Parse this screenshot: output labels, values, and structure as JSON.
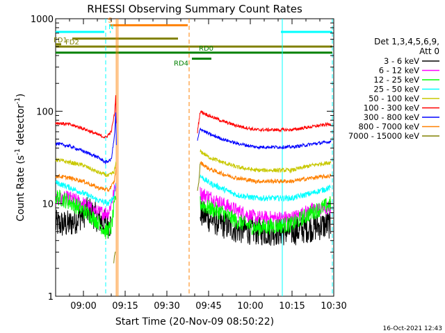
{
  "chart_data": {
    "type": "line",
    "title": "RHESSI Observing Summary Count Rates",
    "xlabel": "Start Time (20-Nov-09 08:50:22)",
    "ylabel_main": "Count Rate (s",
    "ylabel_sup": "-1",
    "ylabel_mid": " detector",
    "ylabel_end": ")",
    "ylog": true,
    "xlim_min": [
      0,
      100
    ],
    "ylim": [
      1,
      1000
    ],
    "x_ticks": [
      {
        "min": 10,
        "label": "09:00"
      },
      {
        "min": 25,
        "label": "09:15"
      },
      {
        "min": 40,
        "label": "09:30"
      },
      {
        "min": 55,
        "label": "09:45"
      },
      {
        "min": 70,
        "label": "10:00"
      },
      {
        "min": 85,
        "label": "10:15"
      },
      {
        "min": 100,
        "label": "10:30"
      }
    ],
    "y_ticks": [
      {
        "value": 1,
        "label": "1"
      },
      {
        "value": 10,
        "label": "10"
      },
      {
        "value": 100,
        "label": "100"
      },
      {
        "value": 1000,
        "label": "1000"
      }
    ],
    "legend": {
      "placement": "right",
      "header": [
        "Det 1,3,4,5,6,9,",
        "Att 0"
      ],
      "entries": [
        {
          "label": "3 - 6 keV",
          "color": "#000000"
        },
        {
          "label": "6 - 12 keV",
          "color": "#ff00ff"
        },
        {
          "label": "12 - 25 keV",
          "color": "#00ff00"
        },
        {
          "label": "25 - 50 keV",
          "color": "#00ffff"
        },
        {
          "label": "50 - 100 keV",
          "color": "#c8c800"
        },
        {
          "label": "100 - 300 keV",
          "color": "#ff0000"
        },
        {
          "label": "300 - 800 keV",
          "color": "#0000ff"
        },
        {
          "label": "800 - 7000 keV",
          "color": "#ff8000"
        },
        {
          "label": "7000 - 15000 keV",
          "color": "#808000"
        }
      ]
    },
    "flags": [
      {
        "label": "",
        "color": "#00ffff",
        "x0": -1,
        "x1": 17.5,
        "y": 720
      },
      {
        "label": "",
        "color": "#00ffff",
        "x0": 81,
        "x1": 99.5,
        "y": 720
      },
      {
        "label": "S",
        "color": "#ff8000",
        "x0": 19.5,
        "x1": 47.5,
        "y": 850
      },
      {
        "label": "N",
        "color": "#00ffff",
        "x0": 19.5,
        "x1": 19.8,
        "y": 720
      },
      {
        "label": "FD1",
        "color": "#808000",
        "x0": -1,
        "x1": 2,
        "y": 530
      },
      {
        "label": "",
        "color": "#808000",
        "x0": 6,
        "x1": 44,
        "y": 610
      },
      {
        "label": "FD2",
        "color": "#808000",
        "x0": -1,
        "x1": 99.5,
        "y": 500
      },
      {
        "label": "RD0",
        "color": "#008000",
        "x0": -1,
        "x1": 99.5,
        "y": 430
      },
      {
        "label": "RD4",
        "color": "#008000",
        "x0": 49,
        "x1": 56,
        "y": 370
      }
    ],
    "vlines": [
      {
        "x": 18,
        "color": "#00ffff",
        "dash": true
      },
      {
        "x": 21.8,
        "color": "#ff8000",
        "dash": false
      },
      {
        "x": 22.4,
        "color": "#ff8000",
        "dash": false
      },
      {
        "x": 48,
        "color": "#ff8000",
        "dash": true
      },
      {
        "x": 81.5,
        "color": "#00ffff",
        "dash": false
      },
      {
        "x": 99.5,
        "color": "#00ffff",
        "dash": true
      }
    ],
    "series": [
      {
        "name": "3 - 6 keV",
        "color": "#000000",
        "noise": 0.35,
        "seg1": [
          [
            0,
            6
          ],
          [
            5,
            6
          ],
          [
            8,
            7
          ],
          [
            12,
            8.5
          ],
          [
            15,
            7
          ],
          [
            18,
            6
          ],
          [
            20,
            6
          ]
        ],
        "seg2": [
          [
            52,
            8
          ],
          [
            55,
            7
          ],
          [
            60,
            6
          ],
          [
            65,
            5.3
          ],
          [
            75,
            5
          ],
          [
            85,
            5
          ],
          [
            92,
            5.5
          ],
          [
            99,
            6
          ]
        ]
      },
      {
        "name": "6 - 12 keV",
        "color": "#ff00ff",
        "noise": 0.18,
        "seg1": [
          [
            0,
            11
          ],
          [
            5,
            11.5
          ],
          [
            10,
            10
          ],
          [
            15,
            8
          ],
          [
            19,
            8
          ],
          [
            21,
            13
          ],
          [
            21.8,
            18
          ]
        ],
        "seg2": [
          [
            52,
            13
          ],
          [
            55,
            12
          ],
          [
            60,
            10
          ],
          [
            65,
            8.5
          ],
          [
            72,
            7
          ],
          [
            85,
            7
          ],
          [
            92,
            8.5
          ],
          [
            99,
            9
          ]
        ]
      },
      {
        "name": "12 - 25 keV",
        "color": "#00ff00",
        "noise": 0.2,
        "seg1": [
          [
            0,
            12
          ],
          [
            5,
            10.5
          ],
          [
            10,
            8.5
          ],
          [
            15,
            6.5
          ],
          [
            18,
            5
          ],
          [
            20,
            5.5
          ],
          [
            21.8,
            13
          ]
        ],
        "seg2": [
          [
            52,
            10
          ],
          [
            55,
            9
          ],
          [
            60,
            8
          ],
          [
            65,
            6.5
          ],
          [
            72,
            5.5
          ],
          [
            85,
            6
          ],
          [
            92,
            8
          ],
          [
            99,
            10
          ]
        ]
      },
      {
        "name": "25 - 50 keV",
        "color": "#00ffff",
        "noise": 0.07,
        "seg1": [
          [
            0,
            17
          ],
          [
            5,
            15
          ],
          [
            10,
            13
          ],
          [
            15,
            11
          ],
          [
            19,
            10
          ],
          [
            21,
            12
          ],
          [
            21.8,
            18
          ]
        ],
        "seg2": [
          [
            52,
            20
          ],
          [
            55,
            17
          ],
          [
            60,
            14.5
          ],
          [
            65,
            12.5
          ],
          [
            72,
            11.5
          ],
          [
            85,
            11.5
          ],
          [
            92,
            13
          ],
          [
            99,
            15
          ]
        ]
      },
      {
        "name": "50 - 100 keV",
        "color": "#c8c800",
        "noise": 0.05,
        "seg1": [
          [
            0,
            30
          ],
          [
            5,
            28
          ],
          [
            10,
            26
          ],
          [
            15,
            22
          ],
          [
            19,
            20
          ],
          [
            21,
            22
          ],
          [
            21.8,
            28
          ]
        ],
        "seg2": [
          [
            52,
            37
          ],
          [
            55,
            32
          ],
          [
            60,
            28
          ],
          [
            65,
            25
          ],
          [
            72,
            23
          ],
          [
            85,
            23
          ],
          [
            92,
            26
          ],
          [
            99,
            28
          ]
        ]
      },
      {
        "name": "100 - 300 keV",
        "color": "#ff0000",
        "noise": 0.04,
        "seg1": [
          [
            0,
            75
          ],
          [
            5,
            72
          ],
          [
            10,
            65
          ],
          [
            15,
            56
          ],
          [
            18,
            52
          ],
          [
            20,
            60
          ],
          [
            21.2,
            95
          ],
          [
            21.6,
            145
          ],
          [
            21.9,
            60
          ]
        ],
        "seg2": [
          [
            51,
            60
          ],
          [
            52,
            100
          ],
          [
            55,
            90
          ],
          [
            60,
            78
          ],
          [
            65,
            70
          ],
          [
            72,
            63
          ],
          [
            85,
            63
          ],
          [
            92,
            68
          ],
          [
            99,
            73
          ]
        ]
      },
      {
        "name": "300 - 800 keV",
        "color": "#0000ff",
        "noise": 0.04,
        "seg1": [
          [
            0,
            45
          ],
          [
            5,
            42
          ],
          [
            10,
            37
          ],
          [
            15,
            32
          ],
          [
            18,
            28
          ],
          [
            20,
            30
          ],
          [
            21.2,
            55
          ],
          [
            21.6,
            95
          ],
          [
            21.9,
            35
          ]
        ],
        "seg2": [
          [
            51,
            48
          ],
          [
            52,
            65
          ],
          [
            55,
            57
          ],
          [
            60,
            50
          ],
          [
            65,
            45
          ],
          [
            72,
            41
          ],
          [
            85,
            41
          ],
          [
            92,
            44
          ],
          [
            99,
            47
          ]
        ]
      },
      {
        "name": "800 - 7000 keV",
        "color": "#ff8000",
        "noise": 0.05,
        "seg1": [
          [
            0,
            20
          ],
          [
            5,
            19
          ],
          [
            10,
            17.5
          ],
          [
            15,
            15
          ],
          [
            19,
            14
          ],
          [
            21,
            17
          ],
          [
            21.8,
            25
          ]
        ],
        "seg2": [
          [
            52,
            28
          ],
          [
            55,
            24
          ],
          [
            60,
            21
          ],
          [
            65,
            19
          ],
          [
            72,
            17.5
          ],
          [
            85,
            17.5
          ],
          [
            92,
            19
          ],
          [
            99,
            20
          ]
        ]
      },
      {
        "name": "7000 - 15000 keV",
        "color": "#808000",
        "noise": 0.02,
        "seg1": [
          [
            20.9,
            2.3
          ],
          [
            21.2,
            2.8
          ],
          [
            21.5,
            3
          ]
        ],
        "seg2": [
          [
            51,
            14
          ],
          [
            51.5,
            17
          ],
          [
            52,
            28
          ]
        ]
      }
    ]
  },
  "footer_timestamp": "16-Oct-2021 12:43"
}
